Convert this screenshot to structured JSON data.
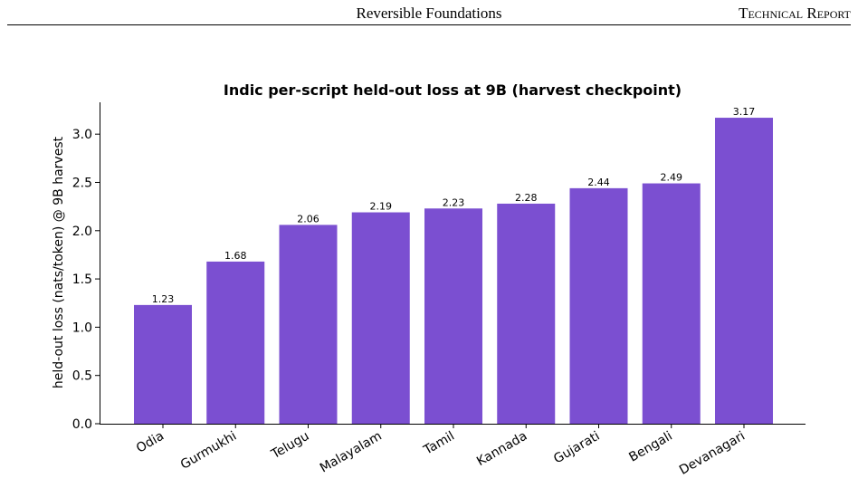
{
  "header": {
    "title": "Reversible Foundations",
    "label": "Technical Report"
  },
  "chart_data": {
    "type": "bar",
    "title": "Indic per-script held-out loss at 9B (harvest checkpoint)",
    "y_label": "held-out loss (nats/token) @ 9B harvest",
    "categories": [
      "Odia",
      "Gurmukhi",
      "Telugu",
      "Malayalam",
      "Tamil",
      "Kannada",
      "Gujarati",
      "Bengali",
      "Devanagari"
    ],
    "values": [
      1.23,
      1.68,
      2.06,
      2.19,
      2.23,
      2.28,
      2.44,
      2.49,
      3.17
    ],
    "color": "#7b4fd1",
    "ylim": [
      0,
      3.33
    ],
    "yticks": [
      {
        "value": 0,
        "label": "0.0"
      },
      0.5,
      {
        "value": 1,
        "label": "1.0"
      },
      1.5,
      {
        "value": 2,
        "label": "2.0"
      },
      2.5,
      {
        "value": 3,
        "label": "3.0"
      }
    ],
    "grid": false
  }
}
